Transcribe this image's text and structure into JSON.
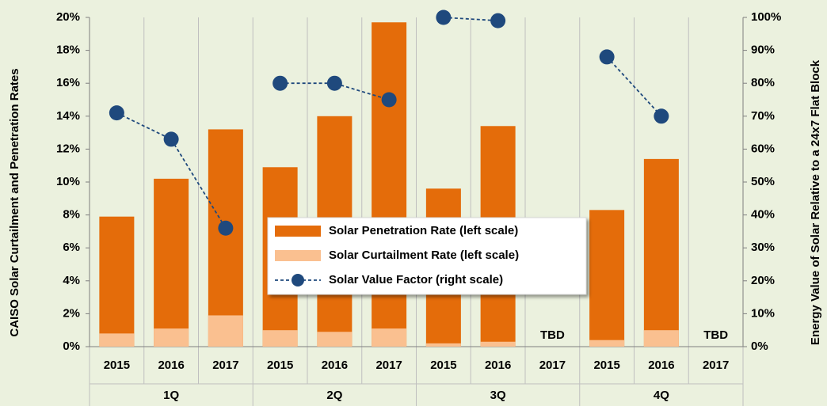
{
  "chart_data": {
    "type": "bar",
    "categories": [
      "2015",
      "2016",
      "2017",
      "2015",
      "2016",
      "2017",
      "2015",
      "2016",
      "2017",
      "2015",
      "2016",
      "2017"
    ],
    "category_groups": [
      "1Q",
      "2Q",
      "3Q",
      "4Q"
    ],
    "series": [
      {
        "name": "Solar Penetration Rate (left scale)",
        "type": "bar",
        "color": "#e46c0a",
        "values": [
          7.9,
          10.2,
          13.2,
          10.9,
          14.0,
          19.7,
          9.6,
          13.4,
          null,
          8.3,
          11.4,
          null
        ],
        "value_labels": [
          null,
          null,
          null,
          null,
          null,
          null,
          null,
          null,
          "TBD",
          null,
          null,
          "TBD"
        ]
      },
      {
        "name": "Solar Curtailment Rate (left scale)",
        "type": "bar",
        "color": "#fac090",
        "values": [
          0.8,
          1.1,
          1.9,
          1.0,
          0.9,
          1.1,
          0.2,
          0.3,
          null,
          0.4,
          1.0,
          null
        ]
      },
      {
        "name": "Solar Value Factor (right scale)",
        "type": "line",
        "axis": "y2",
        "color": "#1f497d",
        "values": [
          71,
          63,
          36,
          80,
          80,
          75,
          100,
          99,
          null,
          88,
          70,
          null
        ]
      }
    ],
    "y_label": "CAISO Solar Curtailment and Penetration Rates",
    "y2_label": "Energy Value of Solar Relative to a 24x7 Flat Block",
    "ylim": [
      0,
      20
    ],
    "yticks": [
      {
        "value": 0,
        "label": "0%"
      },
      {
        "value": 2,
        "label": "2%"
      },
      {
        "value": 4,
        "label": "4%"
      },
      {
        "value": 6,
        "label": "6%"
      },
      {
        "value": 8,
        "label": "8%"
      },
      {
        "value": 10,
        "label": "10%"
      },
      {
        "value": 12,
        "label": "12%"
      },
      {
        "value": 14,
        "label": "14%"
      },
      {
        "value": 16,
        "label": "16%"
      },
      {
        "value": 18,
        "label": "18%"
      },
      {
        "value": 20,
        "label": "20%"
      }
    ],
    "y2lim": [
      0,
      100
    ],
    "y2ticks": [
      {
        "value": 0,
        "label": "0%"
      },
      {
        "value": 10,
        "label": "10%"
      },
      {
        "value": 20,
        "label": "20%"
      },
      {
        "value": 30,
        "label": "30%"
      },
      {
        "value": 40,
        "label": "40%"
      },
      {
        "value": 50,
        "label": "50%"
      },
      {
        "value": 60,
        "label": "60%"
      },
      {
        "value": 70,
        "label": "70%"
      },
      {
        "value": 80,
        "label": "80%"
      },
      {
        "value": 90,
        "label": "90%"
      },
      {
        "value": 100,
        "label": "100%"
      }
    ]
  }
}
